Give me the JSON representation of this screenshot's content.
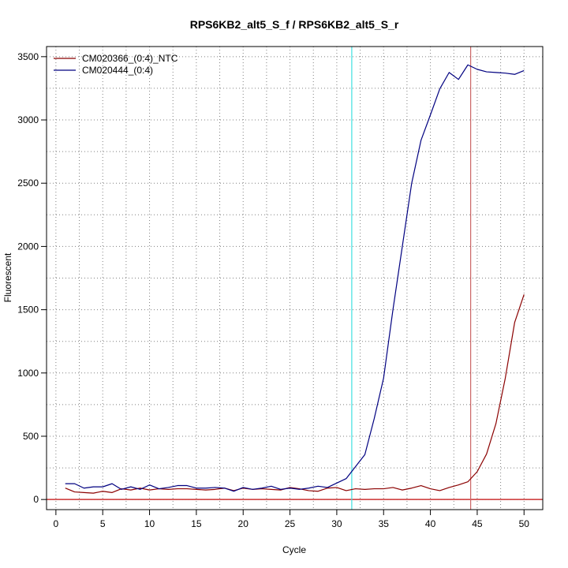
{
  "chart_data": {
    "type": "line",
    "title": "RPS6KB2_alt5_S_f / RPS6KB2_alt5_S_r",
    "xlabel": "Cycle",
    "ylabel": "Fluorescent",
    "xlim": [
      -1,
      52
    ],
    "ylim": [
      -80,
      3580
    ],
    "xticks": [
      0,
      5,
      10,
      15,
      20,
      25,
      30,
      35,
      40,
      45,
      50
    ],
    "yticks": [
      0,
      500,
      1000,
      1500,
      2000,
      2500,
      3000,
      3500
    ],
    "grid": true,
    "legend_position": "top-left",
    "series": [
      {
        "name": "CM020366_(0:4)_NTC",
        "color": "#8b0000",
        "x": [
          1,
          2,
          3,
          4,
          5,
          6,
          7,
          8,
          9,
          10,
          11,
          12,
          13,
          14,
          15,
          16,
          17,
          18,
          19,
          20,
          21,
          22,
          23,
          24,
          25,
          26,
          27,
          28,
          29,
          30,
          31,
          32,
          33,
          34,
          35,
          36,
          37,
          38,
          39,
          40,
          41,
          42,
          43,
          44,
          45,
          46,
          47,
          48,
          49,
          50
        ],
        "y": [
          90,
          60,
          55,
          50,
          65,
          55,
          85,
          75,
          90,
          75,
          85,
          80,
          85,
          85,
          80,
          75,
          80,
          90,
          70,
          90,
          80,
          85,
          80,
          75,
          95,
          85,
          70,
          65,
          90,
          95,
          70,
          85,
          80,
          85,
          85,
          95,
          75,
          90,
          110,
          85,
          70,
          95,
          115,
          140,
          220,
          360,
          600,
          960,
          1400,
          1620
        ]
      },
      {
        "name": "CM020444_(0:4)",
        "color": "#000080",
        "x": [
          1,
          2,
          3,
          4,
          5,
          6,
          7,
          8,
          9,
          10,
          11,
          12,
          13,
          14,
          15,
          16,
          17,
          18,
          19,
          20,
          21,
          22,
          23,
          24,
          25,
          26,
          27,
          28,
          29,
          30,
          31,
          32,
          33,
          34,
          35,
          36,
          37,
          38,
          39,
          40,
          41,
          42,
          43,
          44,
          45,
          46,
          47,
          48,
          49,
          50
        ],
        "y": [
          125,
          125,
          90,
          100,
          100,
          125,
          80,
          100,
          80,
          115,
          85,
          95,
          110,
          110,
          90,
          90,
          95,
          90,
          65,
          95,
          80,
          90,
          105,
          80,
          90,
          80,
          90,
          105,
          95,
          130,
          165,
          260,
          355,
          640,
          960,
          1500,
          2000,
          2500,
          2840,
          3040,
          3245,
          3375,
          3320,
          3435,
          3400,
          3380,
          3375,
          3370,
          3360,
          3390
        ]
      }
    ],
    "reference_lines": {
      "horizontal": {
        "y": 0,
        "color": "#cc3333"
      },
      "vertical": [
        {
          "x": 31.6,
          "color": "#40e0e0"
        },
        {
          "x": 44.3,
          "color": "#cc6666"
        }
      ]
    }
  }
}
